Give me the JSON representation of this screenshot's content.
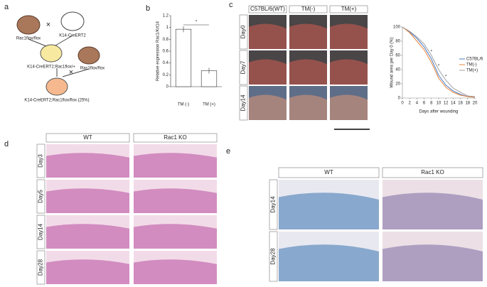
{
  "panels": {
    "a": {
      "label": "a",
      "texts": [
        "Rac1flox/flox",
        "K14-CreERT2",
        "K14-CreERT2;Rac1flox/+",
        "Rac1flox/flox",
        "K14-CreERT2;Rac1flox/flox  (25%)"
      ]
    },
    "c": {
      "label": "c",
      "columns": [
        "C57BL/6(WT)",
        "TM(-)",
        "TM(+)"
      ],
      "rows": [
        "Day0",
        "Day7",
        "Day14"
      ]
    },
    "d": {
      "label": "d",
      "columns": [
        "WT",
        "Rac1 KO"
      ],
      "rows": [
        "Day3",
        "Day5",
        "Day14",
        "Day28"
      ]
    },
    "e": {
      "label": "e",
      "columns": [
        "WT",
        "Rac1 KO"
      ],
      "rows": [
        "Day14",
        "Day28"
      ]
    }
  },
  "chart_data": [
    {
      "type": "bar",
      "panel_label": "b",
      "y_label": "Relative expression Rac1/Krt14",
      "categories": [
        "TM (-)",
        "TM (+)"
      ],
      "values": [
        0.97,
        0.27
      ],
      "errors": [
        0.05,
        0.05
      ],
      "color": "#ffffff",
      "ylim": [
        0,
        1.2
      ],
      "yticks": [
        0,
        0.2,
        0.4,
        0.6,
        0.8,
        1,
        1.2
      ],
      "annotation": "*"
    },
    {
      "type": "line",
      "y_label": "Wound area per Day 0 (%)",
      "x_label": "Days after wounding",
      "x": [
        0,
        2,
        4,
        6,
        8,
        10,
        12,
        14,
        16,
        18,
        20
      ],
      "series": [
        {
          "name": "C57BL/6",
          "color": "#4a78c4",
          "values": [
            100,
            93,
            84,
            72,
            55,
            32,
            18,
            10,
            5,
            2,
            1
          ]
        },
        {
          "name": "TM(-)",
          "color": "#e8843a",
          "values": [
            100,
            92,
            80,
            68,
            50,
            28,
            15,
            8,
            4,
            2,
            1
          ]
        },
        {
          "name": "TM(+)",
          "color": "#a0a0a0",
          "values": [
            100,
            94,
            86,
            76,
            60,
            40,
            25,
            14,
            8,
            3,
            2
          ]
        }
      ],
      "xlim": [
        0,
        20
      ],
      "xticks": [
        0,
        2,
        4,
        6,
        8,
        10,
        12,
        14,
        16,
        18,
        20
      ],
      "ylim": [
        0,
        100
      ],
      "yticks": [
        0,
        20,
        40,
        60,
        80,
        100
      ],
      "legend": "right",
      "annotations": [
        "*",
        "*",
        "*"
      ]
    }
  ]
}
